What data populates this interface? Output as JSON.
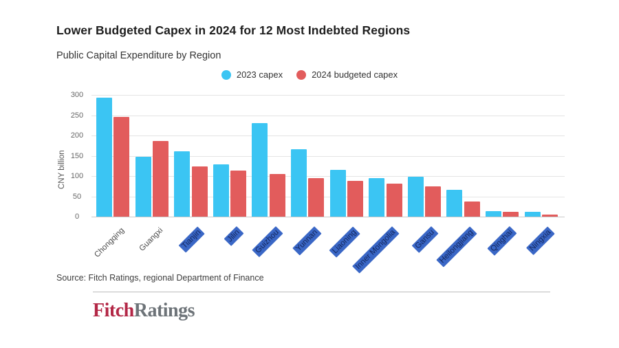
{
  "page": {
    "title": "Lower Budgeted Capex in 2024 for 12 Most Indebted Regions",
    "subtitle": "Public Capital Expenditure by Region",
    "source": "Source: Fitch Ratings, regional Department of Finance",
    "logo_part1": "Fitch",
    "logo_part2": "Ratings"
  },
  "legend": [
    {
      "label": "2023 capex",
      "color": "#3bc5f3"
    },
    {
      "label": "2024 budgeted capex",
      "color": "#e25c5c"
    }
  ],
  "colors": {
    "bar_2023": "#3bc5f3",
    "bar_2024": "#e25c5c",
    "label_highlight_bg": "#3a67c6",
    "label_highlight_text": "#13265c",
    "gridline": "#e4e4e4",
    "axis_line": "#c9c9c9"
  },
  "chart_data": {
    "type": "bar",
    "title": "Lower Budgeted Capex in 2024 for 12 Most Indebted Regions",
    "subtitle": "Public Capital Expenditure by Region",
    "xlabel": "",
    "ylabel": "CNY billion",
    "ylim": [
      0,
      300
    ],
    "yticks": [
      300,
      250,
      200,
      150,
      100,
      50,
      0
    ],
    "grid": true,
    "legend_position": "top",
    "categories": [
      "Chongqing",
      "Guangxi",
      "Tianjin",
      "Jilin",
      "Guizhou",
      "Yunnan",
      "Liaoning",
      "Inner Mongolia",
      "Gansu",
      "Heilongjiang",
      "Qinghai",
      "Ningxia"
    ],
    "highlighted_categories": [
      "Tianjin",
      "Jilin",
      "Guizhou",
      "Yunnan",
      "Liaoning",
      "Inner Mongolia",
      "Gansu",
      "Heilongjiang",
      "Qinghai",
      "Ningxia"
    ],
    "series": [
      {
        "name": "2023 capex",
        "color": "#3bc5f3",
        "values": [
          293,
          147,
          161,
          128,
          231,
          166,
          115,
          95,
          98,
          66,
          13,
          12
        ]
      },
      {
        "name": "2024 budgeted capex",
        "color": "#e25c5c",
        "values": [
          245,
          187,
          123,
          113,
          105,
          95,
          88,
          81,
          74,
          38,
          12,
          5
        ]
      }
    ]
  }
}
